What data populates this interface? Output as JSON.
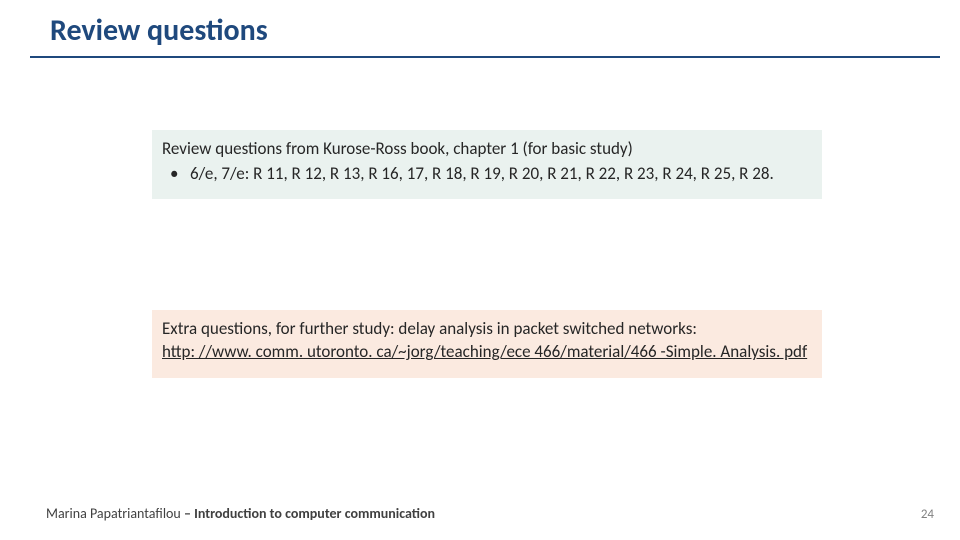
{
  "title": "Review questions",
  "box1": {
    "heading": "Review questions from Kurose-Ross book, chapter 1 (for basic study)",
    "bullet": "6/e, 7/e: R 11, R 12, R 13, R 16, 17, R 18, R 19, R 20, R 21, R 22, R 23, R 24, R 25, R 28."
  },
  "box2": {
    "line1": "Extra  questions, for further study: delay analysis in packet switched networks:",
    "link": " http: //www. comm. utoronto. ca/~jorg/teaching/ece 466/material/466 -Simple. Analysis. pdf"
  },
  "footer": {
    "author": "Marina Papatriantafilou ",
    "sep": "– ",
    "course": " Introduction to computer communication"
  },
  "pagenum": "24",
  "colors": {
    "title": "#1f497d",
    "box1_bg": "#eaf2ef",
    "box2_bg": "#fbeae0",
    "text": "#262626",
    "footer": "#404040",
    "pagenum": "#808080"
  }
}
